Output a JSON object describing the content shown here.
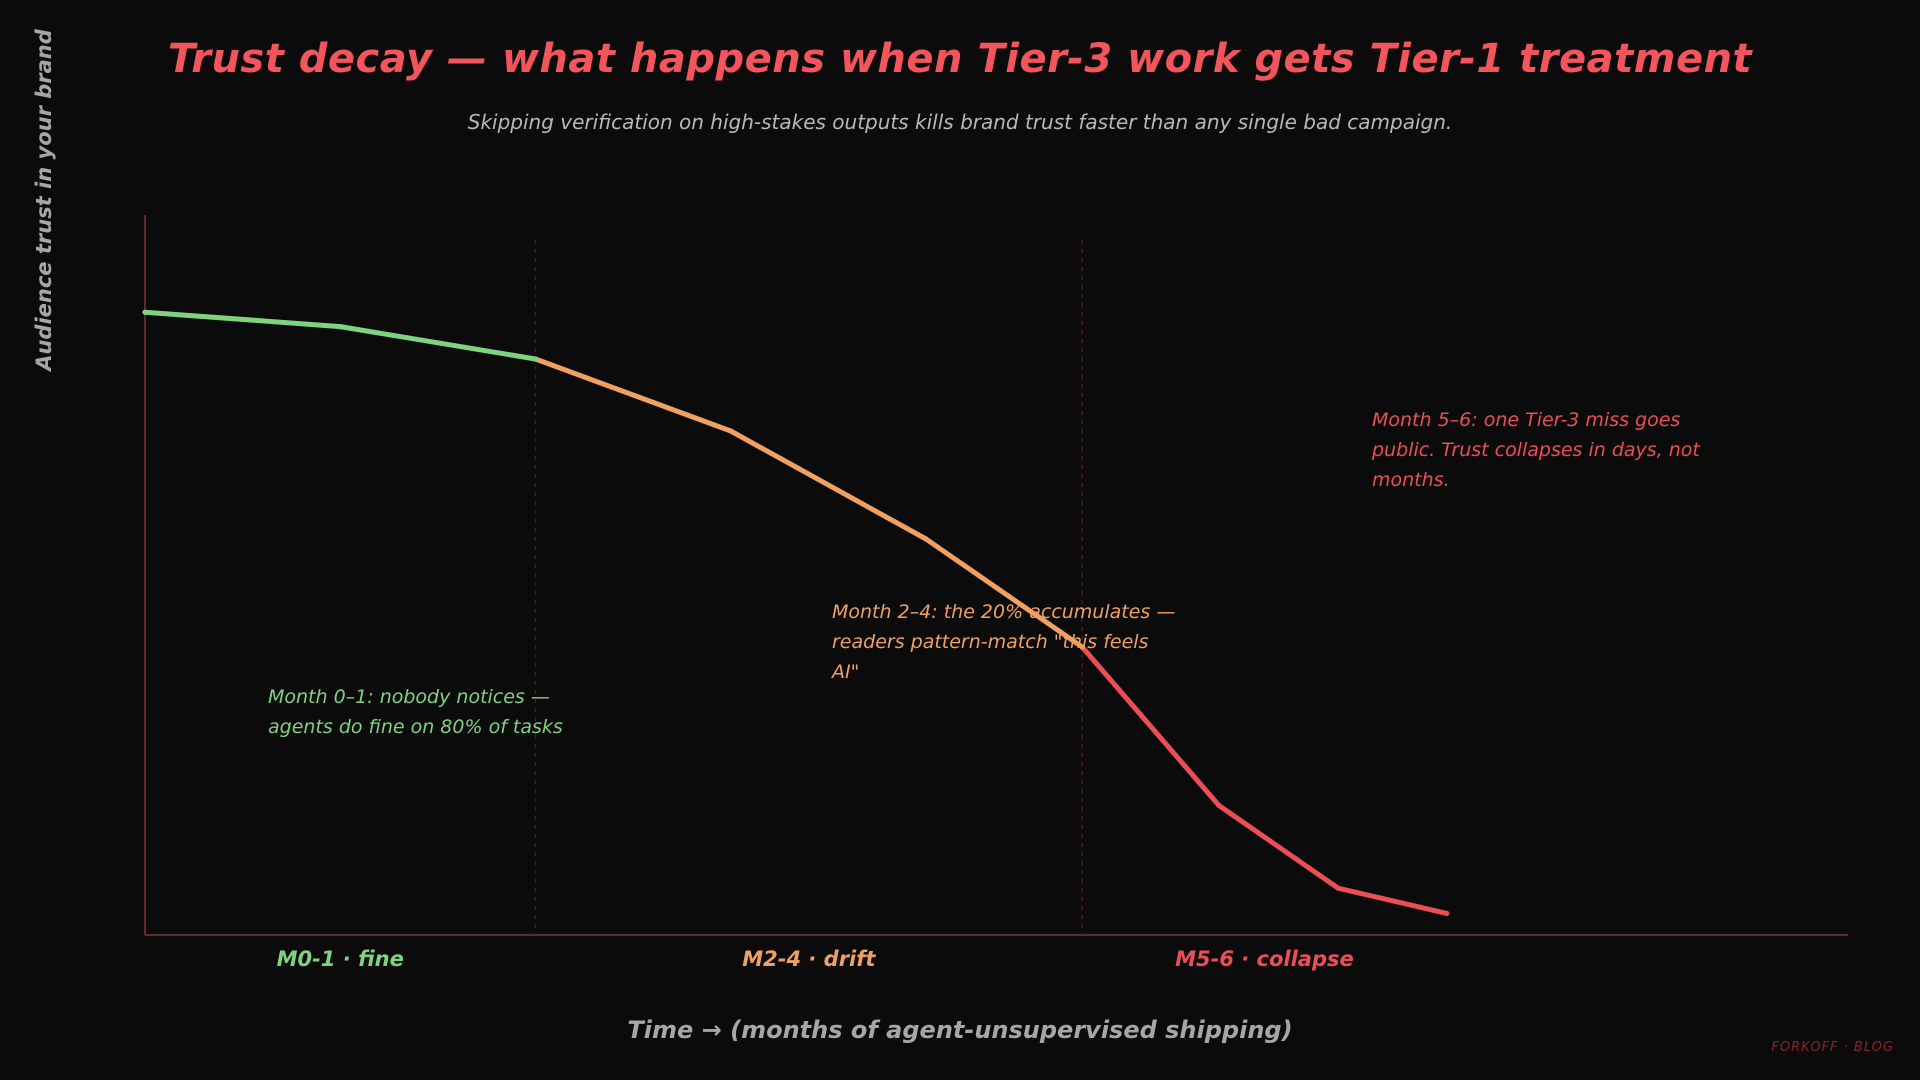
{
  "chart_data": {
    "type": "line",
    "title": "Trust decay — what happens when Tier-3 work gets Tier-1 treatment",
    "subtitle": "Skipping verification on high-stakes outputs kills brand trust faster than any single bad campaign.",
    "xlabel": "Time → (months of agent-unsupervised shipping)",
    "ylabel": "Audience trust in your brand",
    "xlim": [
      0,
      6.5
    ],
    "ylim": [
      0,
      100
    ],
    "grid": false,
    "series": [
      {
        "points": [
          {
            "x": 0.0,
            "y": 86.5
          },
          {
            "x": 0.9,
            "y": 84.5
          },
          {
            "x": 1.8,
            "y": 80.0
          },
          {
            "x": 2.7,
            "y": 70.0
          },
          {
            "x": 3.6,
            "y": 55.0
          },
          {
            "x": 4.32,
            "y": 40.0
          },
          {
            "x": 4.95,
            "y": 18.0
          },
          {
            "x": 5.5,
            "y": 6.5
          },
          {
            "x": 6.0,
            "y": 3.0
          }
        ]
      }
    ],
    "phases": [
      {
        "label": "M0-1 · fine",
        "from": 0,
        "to": 1.8,
        "color": "#7fd37f",
        "note": "Month 0–1: nobody notices — agents do fine on 80% of tasks"
      },
      {
        "label": "M2-4 · drift",
        "from": 1.8,
        "to": 4.32,
        "color": "#f0a060",
        "note": "Month 2–4: the 20% accumulates — readers pattern-match \"this feels AI\""
      },
      {
        "label": "M5-6 · collapse",
        "from": 4.32,
        "to": 6.0,
        "color": "#ec4e55",
        "note": "Month 5–6: one Tier-3 miss goes public. Trust collapses in days, not months."
      }
    ],
    "dividers_x": [
      1.8,
      4.32
    ]
  },
  "colors": {
    "background": "#0b0b0b",
    "title": "#f2555c",
    "subtitle": "#b8b8b8",
    "axis": "#5a2c2c",
    "axis_label": "#a6a6a6",
    "divider": "#4a1a1c"
  },
  "brand": "FORKOFF · BLOG"
}
